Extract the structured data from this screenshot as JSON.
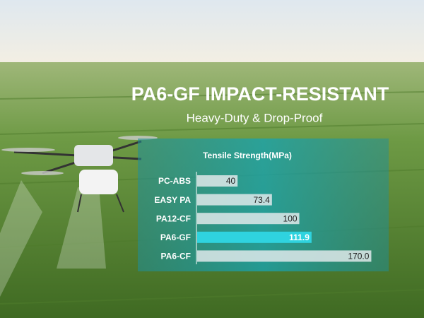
{
  "chart_data": {
    "type": "hbar",
    "title": "PA6-GF IMPACT-RESISTANT",
    "subtitle": "Heavy-Duty & Drop-Proof",
    "chart_title": "Tensile Strength(MPa)",
    "categories": [
      "PC-ABS",
      "EASY PA",
      "PA12-CF",
      "PA6-GF",
      "PA6-CF"
    ],
    "values": [
      40,
      73.4,
      100,
      111.9,
      170.0
    ],
    "value_labels": [
      "40",
      "73.4",
      "100",
      "111.9",
      "170.0"
    ],
    "colors": [
      "#dfe9ea",
      "#dfe9ea",
      "#dfe9ea",
      "#2fd3df",
      "#dfe9ea"
    ],
    "xlim": [
      0,
      180
    ]
  }
}
